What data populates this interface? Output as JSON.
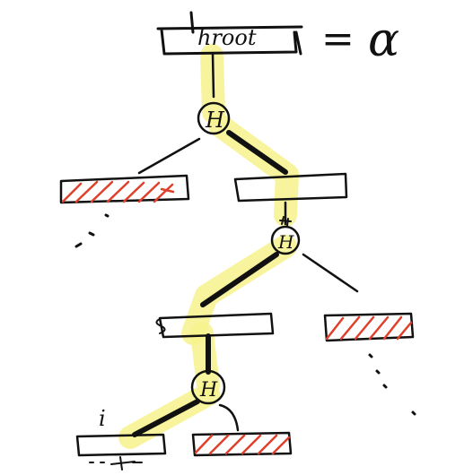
{
  "colors": {
    "ink": "#111111",
    "highlight": "#f7f28c",
    "hatch": "#e0402b",
    "background": "#ffffff"
  },
  "root": {
    "label": "hroot",
    "equals": "=",
    "value": "α"
  },
  "nodes": [
    {
      "id": "n1",
      "label": "H"
    },
    {
      "id": "n2",
      "label": "H"
    },
    {
      "id": "n3",
      "label": "H"
    }
  ],
  "leaf_label": "i"
}
